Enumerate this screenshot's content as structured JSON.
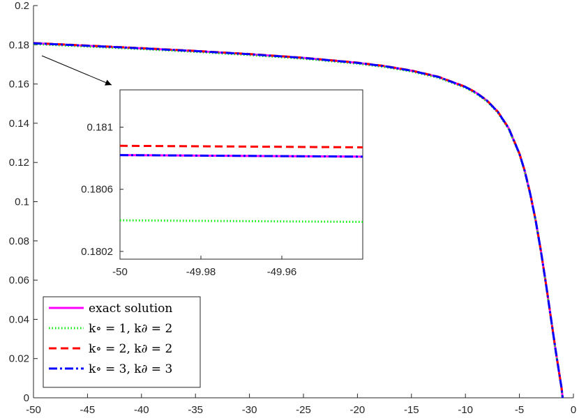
{
  "chart_data": {
    "type": "line",
    "title": "",
    "xlabel": "",
    "ylabel": "",
    "xlim": [
      -50,
      0
    ],
    "ylim": [
      0,
      0.2
    ],
    "grid": false,
    "legend_position": "bottom-left",
    "xticks": [
      "-50",
      "-45",
      "-40",
      "-35",
      "-30",
      "-25",
      "-20",
      "-15",
      "-10",
      "-5",
      "0"
    ],
    "yticks": [
      "0",
      "0.02",
      "0.04",
      "0.06",
      "0.08",
      "0.1",
      "0.12",
      "0.14",
      "0.16",
      "0.18",
      "0.2"
    ],
    "x": [
      -50,
      -45,
      -40,
      -35,
      -30,
      -25,
      -20,
      -17.5,
      -15,
      -12.5,
      -10,
      -9,
      -8,
      -7,
      -6,
      -5,
      -4.5,
      -4,
      -3.5,
      -3,
      -2.5,
      -2,
      -1.6,
      -1.3,
      -1.1,
      -1.0
    ],
    "series": [
      {
        "name": "exact solution",
        "color": "#ff00ff",
        "style": "solid",
        "values": [
          0.1808,
          0.1795,
          0.1782,
          0.1768,
          0.1752,
          0.1733,
          0.1708,
          0.1691,
          0.1668,
          0.1636,
          0.1585,
          0.1555,
          0.1515,
          0.1458,
          0.1375,
          0.1245,
          0.1155,
          0.104,
          0.0905,
          0.0745,
          0.0565,
          0.0375,
          0.0225,
          0.012,
          0.005,
          0.0
        ]
      },
      {
        "name": "k∘ = 1, k∂ = 2",
        "color": "#00ee00",
        "style": "dotted",
        "values": [
          0.1804,
          0.1791,
          0.1778,
          0.1764,
          0.1748,
          0.1729,
          0.1704,
          0.1687,
          0.1664,
          0.1632,
          0.1581,
          0.1551,
          0.1511,
          0.1454,
          0.1371,
          0.1241,
          0.1151,
          0.1036,
          0.0901,
          0.0741,
          0.0561,
          0.0371,
          0.0221,
          0.0116,
          0.0046,
          0.0
        ]
      },
      {
        "name": "k∘ = 2, k∂ = 2",
        "color": "#ff0000",
        "style": "dashed",
        "values": [
          0.1809,
          0.1796,
          0.1783,
          0.1769,
          0.1753,
          0.1734,
          0.1709,
          0.1692,
          0.1669,
          0.1637,
          0.1586,
          0.1556,
          0.1516,
          0.1459,
          0.1376,
          0.1246,
          0.1156,
          0.1041,
          0.0906,
          0.0746,
          0.0566,
          0.0376,
          0.0226,
          0.0121,
          0.0051,
          0.0
        ]
      },
      {
        "name": "k∘ = 3, k∂ = 3",
        "color": "#0000ff",
        "style": "dashdot",
        "values": [
          0.1808,
          0.1795,
          0.1782,
          0.1768,
          0.1752,
          0.1733,
          0.1708,
          0.1691,
          0.1668,
          0.1636,
          0.1585,
          0.1555,
          0.1515,
          0.1458,
          0.1375,
          0.1245,
          0.1155,
          0.104,
          0.0905,
          0.0745,
          0.0565,
          0.0375,
          0.0225,
          0.012,
          0.005,
          0.0
        ]
      }
    ],
    "legend": [
      {
        "label": "exact solution"
      },
      {
        "label": "k∘ = 1, k∂ = 2"
      },
      {
        "label": "k∘ = 2, k∂ = 2"
      },
      {
        "label": "k∘ = 3, k∂ = 3"
      }
    ],
    "inset": {
      "xlim": [
        -50,
        -49.94
      ],
      "ylim": [
        0.18015,
        0.18124
      ],
      "xticks": [
        "-50",
        "-49.98",
        "-49.96"
      ],
      "yticks": [
        "0.181",
        "0.1806",
        "0.1802"
      ],
      "x": [
        -50,
        -49.94
      ],
      "series": [
        {
          "name": "exact solution",
          "values": [
            0.18082,
            0.18081
          ]
        },
        {
          "name": "k∘ = 1, k∂ = 2",
          "values": [
            0.1804,
            0.18039
          ]
        },
        {
          "name": "k∘ = 2, k∂ = 2",
          "values": [
            0.18088,
            0.18087
          ]
        },
        {
          "name": "k∘ = 3, k∂ = 3",
          "values": [
            0.18082,
            0.18081
          ]
        }
      ]
    }
  }
}
